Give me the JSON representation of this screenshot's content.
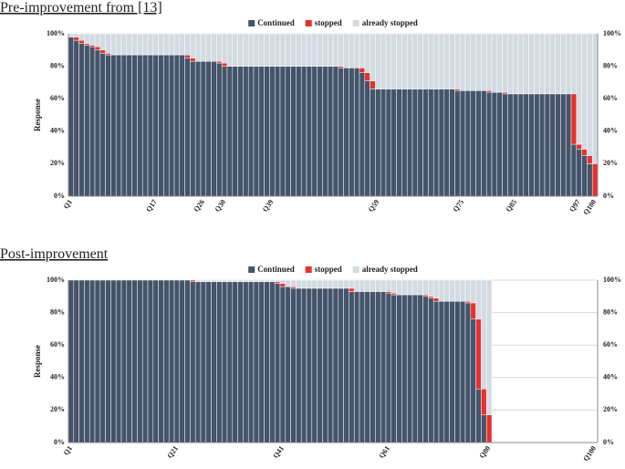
{
  "chart_data": [
    {
      "type": "bar",
      "stacked": true,
      "title": "Pre-improvement from [13]",
      "y_label": "Response",
      "grid": true,
      "legend": "top",
      "categories": [
        "Q1",
        null,
        null,
        null,
        null,
        null,
        null,
        null,
        null,
        null,
        null,
        null,
        null,
        null,
        null,
        null,
        "Q17",
        null,
        null,
        null,
        null,
        null,
        null,
        null,
        null,
        "Q26",
        null,
        null,
        null,
        "Q30",
        null,
        null,
        null,
        null,
        null,
        null,
        null,
        null,
        "Q39",
        null,
        null,
        null,
        null,
        null,
        null,
        null,
        null,
        null,
        null,
        null,
        null,
        null,
        null,
        null,
        null,
        null,
        null,
        null,
        "Q59",
        null,
        null,
        null,
        null,
        null,
        null,
        null,
        null,
        null,
        null,
        null,
        null,
        null,
        null,
        null,
        "Q75",
        null,
        null,
        null,
        null,
        null,
        null,
        null,
        null,
        null,
        "Q85",
        null,
        null,
        null,
        null,
        null,
        null,
        null,
        null,
        null,
        null,
        null,
        "Q97",
        null,
        null,
        "Q100"
      ],
      "series": [
        {
          "name": "Continued",
          "color": "#44546a",
          "values": [
            98,
            96,
            94,
            93,
            92,
            90,
            88,
            87,
            87,
            87,
            87,
            87,
            87,
            87,
            87,
            87,
            87,
            87,
            87,
            87,
            87,
            87,
            85,
            83,
            83,
            83,
            83,
            83,
            82,
            80,
            80,
            80,
            80,
            80,
            80,
            80,
            80,
            80,
            80,
            80,
            80,
            80,
            80,
            80,
            80,
            80,
            80,
            80,
            80,
            80,
            80,
            79,
            79,
            79,
            79,
            76,
            71,
            66,
            66,
            66,
            66,
            66,
            66,
            66,
            66,
            66,
            66,
            66,
            66,
            66,
            66,
            66,
            66,
            65,
            65,
            65,
            65,
            65,
            65,
            64,
            64,
            64,
            63,
            63,
            63,
            63,
            63,
            63,
            63,
            63,
            63,
            63,
            63,
            63,
            63,
            32,
            29,
            25,
            20,
            0
          ]
        },
        {
          "name": "stopped",
          "color": "#e8302c",
          "values": [
            0,
            2,
            2,
            1,
            1,
            2,
            2,
            1,
            0,
            0,
            0,
            0,
            0,
            0,
            0,
            0,
            0,
            0,
            0,
            0,
            0,
            0,
            2,
            2,
            0,
            0,
            0,
            0,
            1,
            2,
            0,
            0,
            0,
            0,
            0,
            0,
            0,
            0,
            0,
            0,
            0,
            0,
            0,
            0,
            0,
            0,
            0,
            0,
            0,
            0,
            0,
            1,
            0,
            0,
            0,
            3,
            5,
            5,
            0,
            0,
            0,
            0,
            0,
            0,
            0,
            0,
            0,
            0,
            0,
            0,
            0,
            0,
            0,
            1,
            0,
            0,
            0,
            0,
            0,
            1,
            0,
            0,
            1,
            0,
            0,
            0,
            0,
            0,
            0,
            0,
            0,
            0,
            0,
            0,
            0,
            31,
            3,
            4,
            5,
            20
          ]
        },
        {
          "name": "already stopped",
          "color": "#d3dae2",
          "values": [
            2,
            2,
            4,
            6,
            7,
            8,
            10,
            12,
            13,
            13,
            13,
            13,
            13,
            13,
            13,
            13,
            13,
            13,
            13,
            13,
            13,
            13,
            13,
            15,
            17,
            17,
            17,
            17,
            17,
            18,
            20,
            20,
            20,
            20,
            20,
            20,
            20,
            20,
            20,
            20,
            20,
            20,
            20,
            20,
            20,
            20,
            20,
            20,
            20,
            20,
            20,
            20,
            21,
            21,
            21,
            21,
            24,
            29,
            34,
            34,
            34,
            34,
            34,
            34,
            34,
            34,
            34,
            34,
            34,
            34,
            34,
            34,
            34,
            34,
            35,
            35,
            35,
            35,
            35,
            35,
            36,
            36,
            36,
            37,
            37,
            37,
            37,
            37,
            37,
            37,
            37,
            37,
            37,
            37,
            37,
            37,
            68,
            71,
            75,
            80
          ]
        }
      ],
      "ylim": [
        0,
        100
      ],
      "yticks": [
        {
          "value": 0,
          "label": "0%"
        },
        {
          "value": 20,
          "label": "20%"
        },
        {
          "value": 40,
          "label": "40%"
        },
        {
          "value": 60,
          "label": "60%"
        },
        {
          "value": 80,
          "label": "80%"
        },
        {
          "value": 100,
          "label": "100%"
        }
      ]
    },
    {
      "type": "bar",
      "stacked": true,
      "title": "Post-improvement",
      "y_label": "Response",
      "grid": true,
      "legend": "top",
      "categories": [
        "Q1",
        null,
        null,
        null,
        null,
        null,
        null,
        null,
        null,
        null,
        null,
        null,
        null,
        null,
        null,
        null,
        null,
        null,
        null,
        null,
        "Q21",
        null,
        null,
        null,
        null,
        null,
        null,
        null,
        null,
        null,
        null,
        null,
        null,
        null,
        null,
        null,
        null,
        null,
        null,
        null,
        "Q41",
        null,
        null,
        null,
        null,
        null,
        null,
        null,
        null,
        null,
        null,
        null,
        null,
        null,
        null,
        null,
        null,
        null,
        null,
        null,
        "Q61",
        null,
        null,
        null,
        null,
        null,
        null,
        null,
        null,
        null,
        null,
        null,
        null,
        null,
        null,
        null,
        null,
        null,
        null,
        "Q80",
        null,
        null,
        null,
        null,
        null,
        null,
        null,
        null,
        null,
        null,
        null,
        null,
        null,
        null,
        null,
        null,
        null,
        null,
        null,
        "Q100"
      ],
      "series": [
        {
          "name": "Continued",
          "color": "#44546a",
          "values": [
            100,
            100,
            100,
            100,
            100,
            100,
            100,
            100,
            100,
            100,
            100,
            100,
            100,
            100,
            100,
            100,
            100,
            100,
            100,
            100,
            100,
            100,
            100,
            99,
            99,
            99,
            99,
            99,
            99,
            99,
            99,
            99,
            99,
            99,
            99,
            99,
            99,
            99,
            99,
            98,
            96,
            96,
            95,
            95,
            95,
            95,
            95,
            95,
            95,
            95,
            95,
            95,
            95,
            93,
            93,
            93,
            93,
            93,
            93,
            93,
            92,
            91,
            91,
            91,
            91,
            91,
            91,
            90,
            89,
            87,
            87,
            87,
            87,
            87,
            87,
            86,
            76,
            33,
            17,
            0,
            null,
            null,
            null,
            null,
            null,
            null,
            null,
            null,
            null,
            null,
            null,
            null,
            null,
            null,
            null,
            null,
            null,
            null,
            null,
            null
          ]
        },
        {
          "name": "stopped",
          "color": "#e8302c",
          "values": [
            0,
            0,
            0,
            0,
            0,
            0,
            0,
            0,
            0,
            0,
            0,
            0,
            0,
            0,
            0,
            0,
            0,
            0,
            0,
            0,
            0,
            0,
            0,
            1,
            0,
            0,
            0,
            0,
            0,
            0,
            0,
            0,
            0,
            0,
            0,
            0,
            0,
            0,
            0,
            1,
            2,
            0,
            1,
            0,
            0,
            0,
            0,
            0,
            0,
            0,
            0,
            0,
            0,
            2,
            0,
            0,
            0,
            0,
            0,
            0,
            1,
            1,
            0,
            0,
            0,
            0,
            0,
            1,
            1,
            2,
            0,
            0,
            0,
            0,
            0,
            1,
            10,
            43,
            16,
            17,
            null,
            null,
            null,
            null,
            null,
            null,
            null,
            null,
            null,
            null,
            null,
            null,
            null,
            null,
            null,
            null,
            null,
            null,
            null,
            null
          ]
        },
        {
          "name": "already stopped",
          "color": "#d3dae2",
          "values": [
            0,
            0,
            0,
            0,
            0,
            0,
            0,
            0,
            0,
            0,
            0,
            0,
            0,
            0,
            0,
            0,
            0,
            0,
            0,
            0,
            0,
            0,
            0,
            0,
            1,
            1,
            1,
            1,
            1,
            1,
            1,
            1,
            1,
            1,
            1,
            1,
            1,
            1,
            1,
            1,
            2,
            4,
            4,
            5,
            5,
            5,
            5,
            5,
            5,
            5,
            5,
            5,
            5,
            5,
            7,
            7,
            7,
            7,
            7,
            7,
            7,
            8,
            9,
            9,
            9,
            9,
            9,
            9,
            10,
            11,
            13,
            13,
            13,
            13,
            13,
            13,
            14,
            24,
            67,
            83,
            null,
            null,
            null,
            null,
            null,
            null,
            null,
            null,
            null,
            null,
            null,
            null,
            null,
            null,
            null,
            null,
            null,
            null,
            null,
            null
          ]
        }
      ],
      "ylim": [
        0,
        100
      ],
      "yticks": [
        {
          "value": 0,
          "label": "0%"
        },
        {
          "value": 20,
          "label": "20%"
        },
        {
          "value": 40,
          "label": "40%"
        },
        {
          "value": 60,
          "label": "60%"
        },
        {
          "value": 80,
          "label": "80%"
        },
        {
          "value": 100,
          "label": "100%"
        }
      ]
    }
  ]
}
